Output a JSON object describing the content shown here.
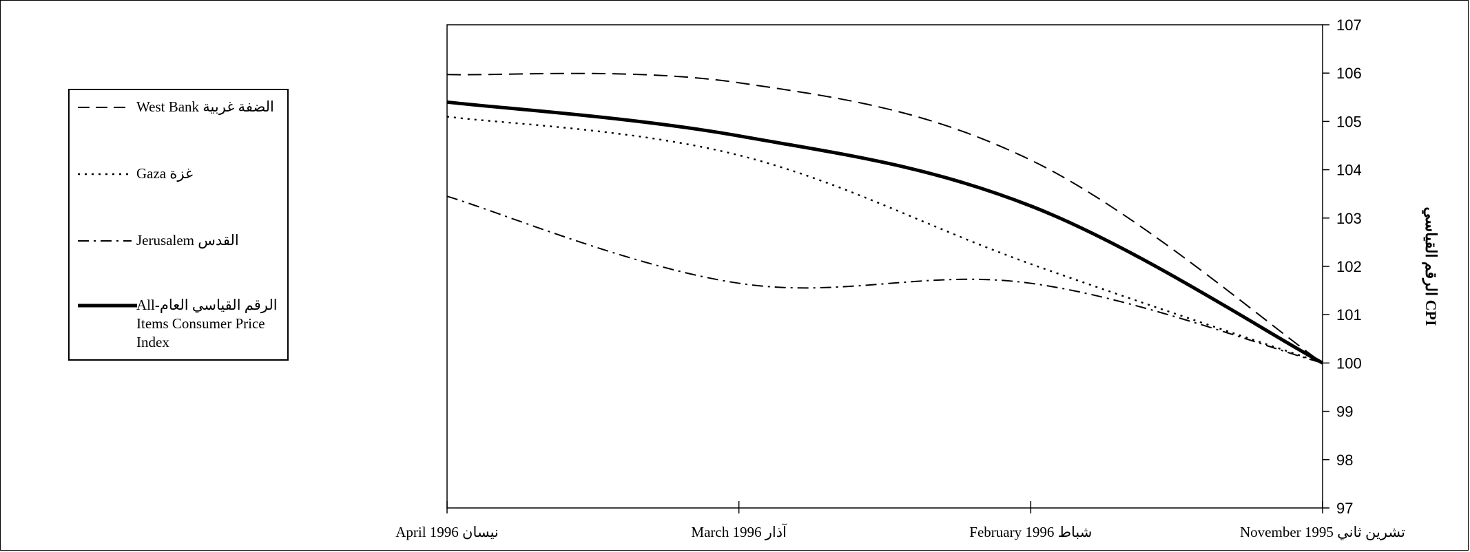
{
  "chart_data": {
    "type": "line",
    "title": "",
    "xlabel": "",
    "ylabel": "الرقم القياسي CPI",
    "categories": [
      "April 1996 نيسان",
      "March 1996 آذار",
      "February 1996  شباط",
      "November 1995  تشرين ثاني"
    ],
    "ylim": [
      97,
      107
    ],
    "yticks": [
      "97",
      "98",
      "99",
      "100",
      "101",
      "102",
      "103",
      "104",
      "105",
      "106",
      "107"
    ],
    "grid": false,
    "legend_position": "left",
    "y_axis_side": "right",
    "series": [
      {
        "name": "West Bank الضفة غربية",
        "style": "dashed",
        "values": [
          105.97,
          105.8,
          104.2,
          100.0
        ]
      },
      {
        "name": "Gaza غزة",
        "style": "dotted",
        "values": [
          105.1,
          104.3,
          102.05,
          100.0
        ]
      },
      {
        "name": "Jerusalem القدس",
        "style": "dash-dot",
        "values": [
          103.45,
          101.65,
          101.65,
          100.0
        ]
      },
      {
        "name": "All-الرقم القياسي العام Items Consumer Price Index",
        "style": "solid-thick",
        "values": [
          105.4,
          104.7,
          103.25,
          100.0
        ]
      }
    ]
  },
  "legend": {
    "items": [
      {
        "label": "West Bank الضفة غربية",
        "style": "dashed"
      },
      {
        "label": "Gaza غزة",
        "style": "dotted"
      },
      {
        "label": "Jerusalem القدس",
        "style": "dash-dot"
      },
      {
        "label_line1": "All-الرقم القياسي العام",
        "label_line2": "Items Consumer Price",
        "label_line3": "Index",
        "style": "solid-thick"
      }
    ]
  }
}
